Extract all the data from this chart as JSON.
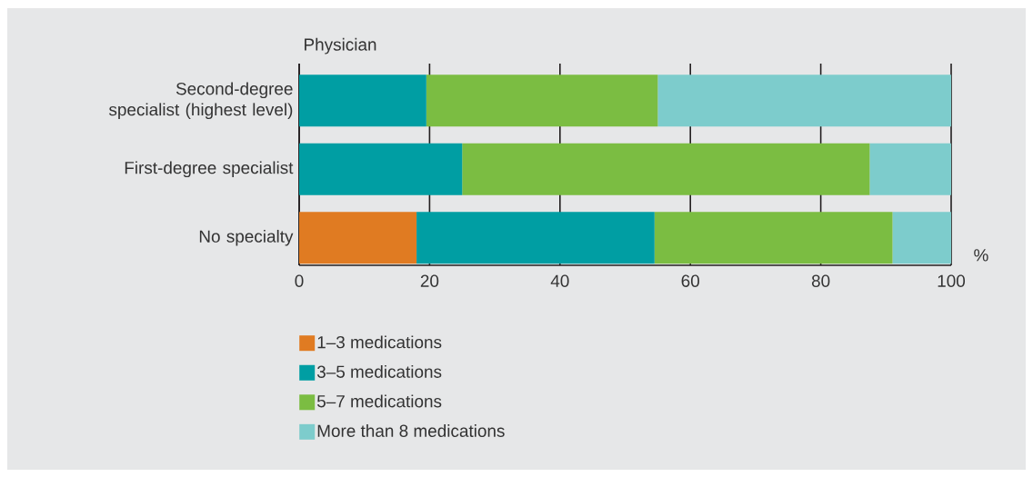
{
  "chart_data": {
    "type": "bar",
    "orientation": "horizontal",
    "stacked": true,
    "ylabel": "Physician",
    "xlabel": "%",
    "categories": [
      "Second-degree specialist (highest level)",
      "First-degree specialist",
      "No specialty"
    ],
    "series": [
      {
        "name": "1–3 medications",
        "color": "#e07b22",
        "values": [
          0,
          0,
          18
        ]
      },
      {
        "name": "3–5 medications",
        "color": "#009ea3",
        "values": [
          19.5,
          25,
          36.5
        ]
      },
      {
        "name": "5–7 medications",
        "color": "#7bbd42",
        "values": [
          35.5,
          62.5,
          36.5
        ]
      },
      {
        "name": "More than 8 medications",
        "color": "#7dcccc",
        "values": [
          45,
          12.5,
          9
        ]
      }
    ],
    "xlim": [
      0,
      100
    ],
    "xticks": [
      0,
      20,
      40,
      60,
      80,
      100
    ],
    "grid": "x",
    "legend": "bottom left"
  }
}
